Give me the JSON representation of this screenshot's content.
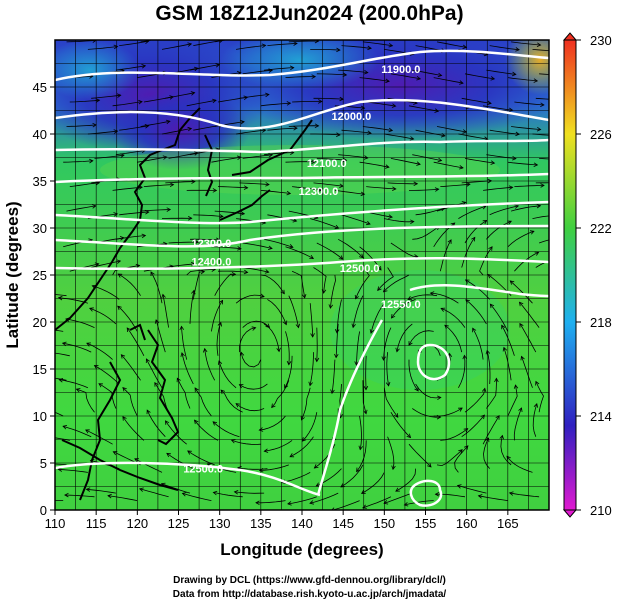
{
  "title": "GSM 18Z12Jun2024 (200.0hPa)",
  "x_axis": {
    "label": "Longitude (degrees)",
    "ticks": [
      "110",
      "115",
      "120",
      "125",
      "130",
      "135",
      "140",
      "145",
      "150",
      "155",
      "160",
      "165"
    ],
    "range": [
      110,
      170
    ]
  },
  "y_axis": {
    "label": "Latitude (degrees)",
    "ticks": [
      "0",
      "5",
      "10",
      "15",
      "20",
      "25",
      "30",
      "35",
      "40",
      "45"
    ],
    "range": [
      0,
      50
    ]
  },
  "colorbar": {
    "ticks": [
      "210",
      "214",
      "218",
      "222",
      "226",
      "230"
    ],
    "range": [
      210,
      230
    ],
    "colors": [
      "#e01ad0",
      "#3020c0",
      "#1fb0f0",
      "#40d040",
      "#f0e020",
      "#f03020"
    ]
  },
  "contour_labels": [
    {
      "text": "11900.0",
      "lon": 152,
      "lat": 46.5
    },
    {
      "text": "12000.0",
      "lon": 146,
      "lat": 41.5
    },
    {
      "text": "12100.0",
      "lon": 143,
      "lat": 36.5
    },
    {
      "text": "12300.0",
      "lon": 142,
      "lat": 33.5
    },
    {
      "text": "12300.0",
      "lon": 129,
      "lat": 28
    },
    {
      "text": "12400.0",
      "lon": 129,
      "lat": 26
    },
    {
      "text": "12500.0",
      "lon": 147,
      "lat": 25.3
    },
    {
      "text": "12550.0",
      "lon": 152,
      "lat": 21.5
    },
    {
      "text": "12500.0",
      "lon": 128,
      "lat": 4
    }
  ],
  "credits": {
    "line1": "Drawing by DCL (https://www.gfd-dennou.org/library/dcl/)",
    "line2": "Data from http://database.rish.kyoto-u.ac.jp/arch/jmadata/"
  },
  "chart_data": {
    "type": "heatmap",
    "title": "GSM 18Z12Jun2024 (200.0hPa)",
    "xlabel": "Longitude (degrees)",
    "ylabel": "Latitude (degrees)",
    "xlim": [
      110,
      170
    ],
    "ylim": [
      0,
      50
    ],
    "colorbar_range": [
      210,
      230
    ],
    "colorbar_ticks": [
      210,
      214,
      218,
      222,
      226,
      230
    ]
  }
}
